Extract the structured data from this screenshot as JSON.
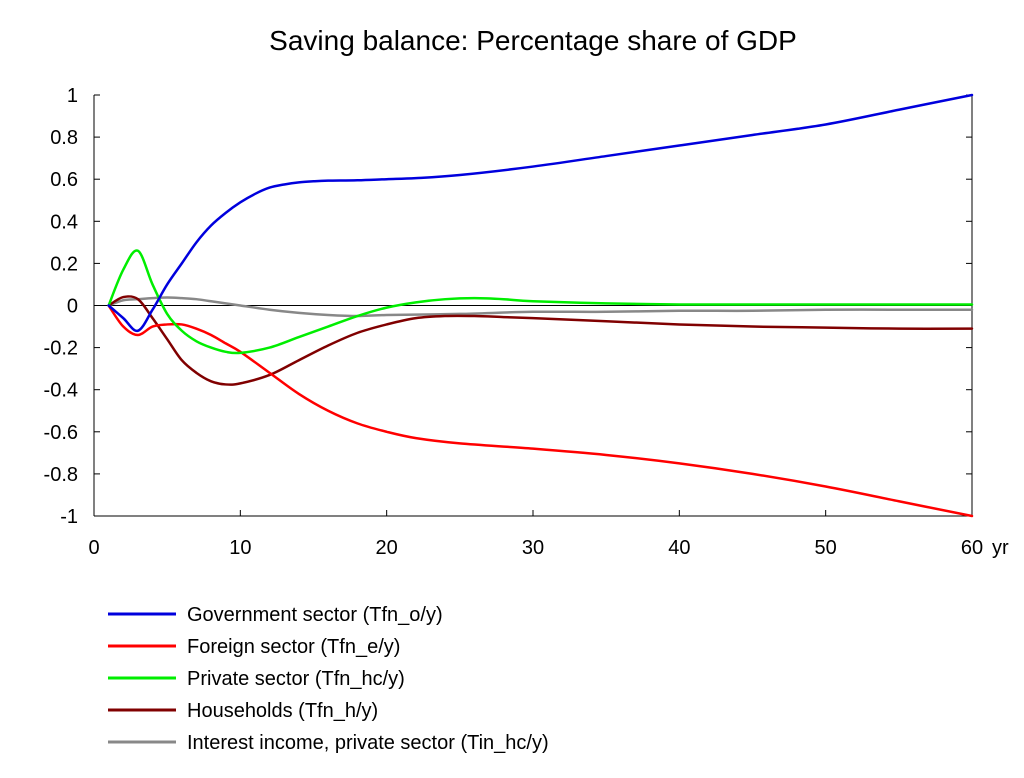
{
  "chart_data": {
    "type": "line",
    "title": "Saving balance: Percentage share of GDP",
    "xlabel": "",
    "ylabel": "",
    "x_unit_label": "yr",
    "xlim": [
      0,
      60
    ],
    "ylim": [
      -1,
      1
    ],
    "x_ticks": [
      0,
      10,
      20,
      30,
      40,
      50,
      60
    ],
    "x_tick_labels": [
      "0",
      "10",
      "20",
      "30",
      "40",
      "50",
      "60"
    ],
    "y_ticks": [
      1,
      0.8,
      0.6,
      0.4,
      0.2,
      0,
      -0.2,
      -0.4,
      -0.6,
      -0.8,
      -1
    ],
    "y_tick_labels": [
      "1",
      "0.8",
      "0.6",
      "0.4",
      "0.2",
      "0",
      "-0.2",
      "-0.4",
      "-0.6",
      "-0.8",
      "-1"
    ],
    "grid": false,
    "zero_line": true,
    "legend_position": "bottom-left",
    "series": [
      {
        "name": "Government sector (Tfn_o/y)",
        "color": "#0000dd",
        "x": [
          1,
          2,
          3,
          4,
          5,
          6,
          7,
          8,
          9,
          10,
          11,
          12,
          13,
          14,
          15,
          16,
          18,
          20,
          22,
          25,
          30,
          35,
          40,
          45,
          50,
          55,
          60
        ],
        "values": [
          0.0,
          -0.06,
          -0.12,
          -0.02,
          0.1,
          0.2,
          0.3,
          0.38,
          0.44,
          0.49,
          0.53,
          0.56,
          0.575,
          0.585,
          0.59,
          0.593,
          0.595,
          0.6,
          0.605,
          0.62,
          0.66,
          0.71,
          0.76,
          0.81,
          0.86,
          0.93,
          1.0
        ]
      },
      {
        "name": "Foreign sector (Tfn_e/y)",
        "color": "#ff0000",
        "x": [
          1,
          2,
          3,
          4,
          5,
          6,
          7,
          8,
          9,
          10,
          12,
          14,
          16,
          18,
          20,
          22,
          25,
          30,
          35,
          40,
          45,
          50,
          55,
          60
        ],
        "values": [
          0.0,
          -0.1,
          -0.14,
          -0.1,
          -0.09,
          -0.09,
          -0.11,
          -0.14,
          -0.18,
          -0.22,
          -0.32,
          -0.42,
          -0.5,
          -0.56,
          -0.6,
          -0.63,
          -0.655,
          -0.68,
          -0.71,
          -0.75,
          -0.8,
          -0.86,
          -0.93,
          -1.0
        ]
      },
      {
        "name": "Private sector (Tfn_hc/y)",
        "color": "#00ee00",
        "x": [
          1,
          2,
          3,
          4,
          5,
          6,
          7,
          8,
          9,
          10,
          12,
          14,
          16,
          18,
          20,
          22,
          24,
          26,
          28,
          30,
          35,
          40,
          45,
          50,
          55,
          60
        ],
        "values": [
          0.0,
          0.17,
          0.26,
          0.1,
          -0.04,
          -0.12,
          -0.17,
          -0.2,
          -0.22,
          -0.225,
          -0.2,
          -0.15,
          -0.1,
          -0.05,
          -0.01,
          0.015,
          0.03,
          0.035,
          0.03,
          0.02,
          0.01,
          0.005,
          0.005,
          0.005,
          0.005,
          0.005
        ]
      },
      {
        "name": "Households (Tfn_h/y)",
        "color": "#800000",
        "x": [
          1,
          2,
          3,
          4,
          5,
          6,
          7,
          8,
          9,
          10,
          12,
          14,
          16,
          18,
          20,
          22,
          24,
          26,
          28,
          30,
          35,
          40,
          45,
          50,
          55,
          60
        ],
        "values": [
          0.0,
          0.04,
          0.03,
          -0.06,
          -0.16,
          -0.26,
          -0.32,
          -0.36,
          -0.375,
          -0.37,
          -0.33,
          -0.26,
          -0.19,
          -0.13,
          -0.09,
          -0.06,
          -0.05,
          -0.05,
          -0.055,
          -0.06,
          -0.075,
          -0.09,
          -0.1,
          -0.105,
          -0.11,
          -0.11
        ]
      },
      {
        "name": "Interest income, private sector (Tin_hc/y)",
        "color": "#888888",
        "x": [
          1,
          2,
          3,
          4,
          5,
          6,
          7,
          8,
          9,
          10,
          12,
          14,
          16,
          18,
          20,
          25,
          30,
          35,
          40,
          45,
          50,
          55,
          60
        ],
        "values": [
          0.0,
          0.025,
          0.03,
          0.035,
          0.038,
          0.035,
          0.03,
          0.02,
          0.01,
          0.0,
          -0.02,
          -0.035,
          -0.045,
          -0.05,
          -0.045,
          -0.04,
          -0.03,
          -0.03,
          -0.025,
          -0.025,
          -0.02,
          -0.02,
          -0.02
        ]
      }
    ]
  }
}
